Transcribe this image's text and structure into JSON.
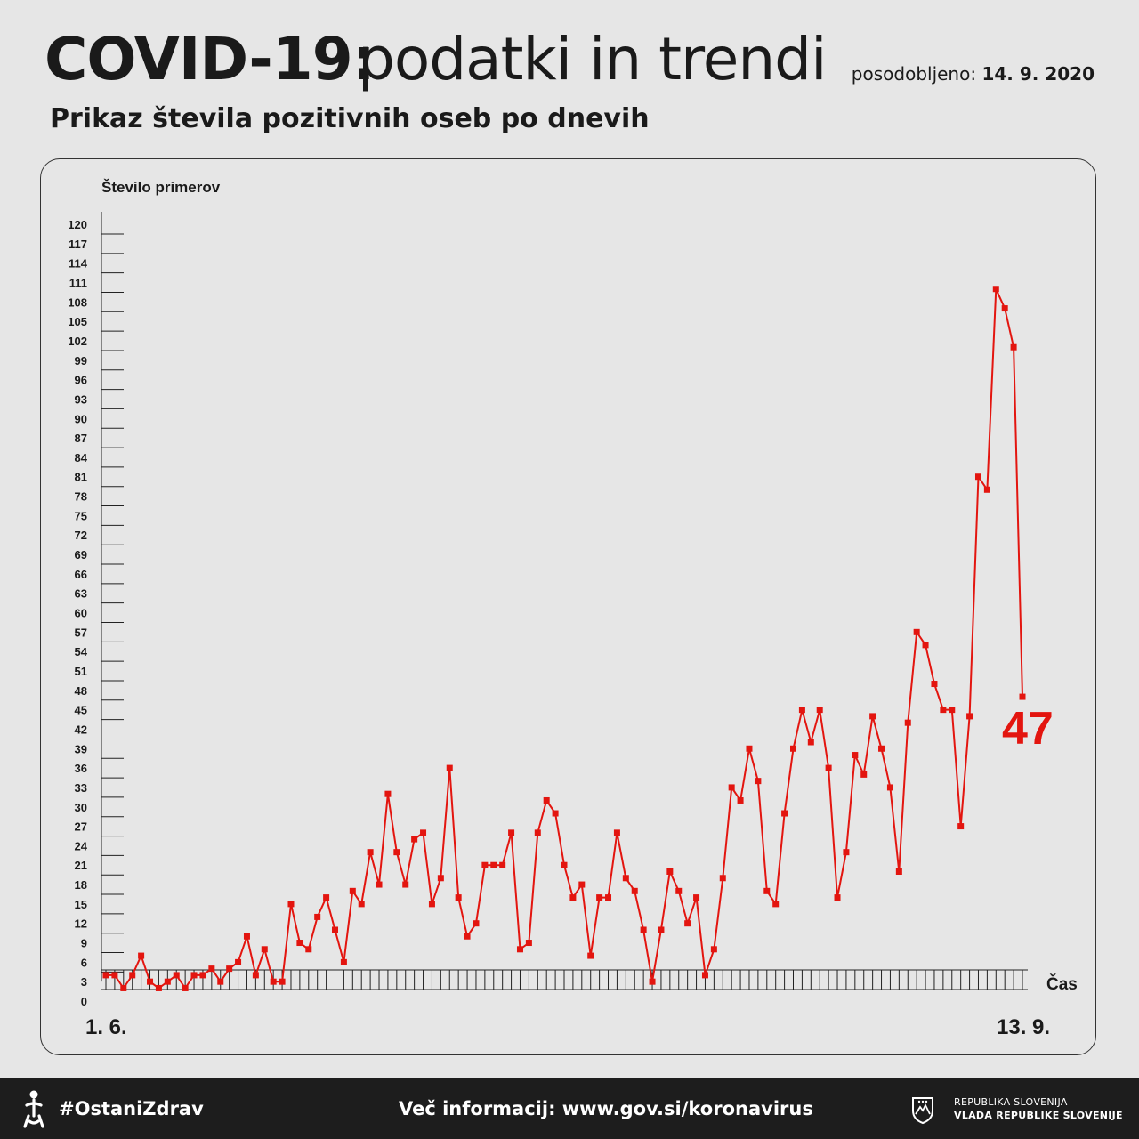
{
  "header": {
    "title_bold": "COVID-19:",
    "title_light": "podatki in trendi",
    "updated_label": "posodobljeno:",
    "updated_date": "14. 9. 2020",
    "subtitle": "Prikaz števila pozitivnih oseb po dnevih"
  },
  "chart_data": {
    "type": "line",
    "ylabel": "Število primerov",
    "xlabel": "Čas",
    "x_start_label": "1. 6.",
    "x_end_label": "13. 9.",
    "ylim": [
      0,
      120
    ],
    "y_ticks": [
      0,
      3,
      6,
      9,
      12,
      15,
      18,
      21,
      24,
      27,
      30,
      33,
      36,
      39,
      42,
      45,
      48,
      51,
      54,
      57,
      60,
      63,
      66,
      69,
      72,
      75,
      78,
      81,
      84,
      87,
      90,
      93,
      96,
      99,
      102,
      105,
      108,
      111,
      114,
      117,
      120
    ],
    "grid": false,
    "highlight_label": "47",
    "color": "#e3150f",
    "series": [
      {
        "values": [
          4,
          4,
          2,
          4,
          7,
          3,
          2,
          3,
          4,
          2,
          4,
          4,
          5,
          3,
          5,
          6,
          10,
          4,
          8,
          3,
          3,
          15,
          9,
          8,
          13,
          16,
          11,
          6,
          17,
          15,
          23,
          18,
          32,
          23,
          18,
          25,
          26,
          15,
          19,
          36,
          16,
          10,
          12,
          21,
          21,
          21,
          26,
          8,
          9,
          26,
          31,
          29,
          21,
          16,
          18,
          7,
          16,
          16,
          26,
          19,
          17,
          11,
          3,
          11,
          20,
          17,
          12,
          16,
          4,
          8,
          19,
          33,
          31,
          39,
          34,
          17,
          15,
          29,
          39,
          45,
          40,
          45,
          36,
          16,
          23,
          38,
          35,
          44,
          39,
          33,
          20,
          43,
          57,
          55,
          49,
          45,
          45,
          27,
          44,
          81,
          79,
          110,
          107,
          101,
          47
        ]
      }
    ]
  },
  "footer": {
    "hashtag": "#OstaniZdrav",
    "info": "Več informacij: www.gov.si/koronavirus",
    "gov_line1": "REPUBLIKA SLOVENIJA",
    "gov_line2": "VLADA REPUBLIKE SLOVENIJE"
  }
}
